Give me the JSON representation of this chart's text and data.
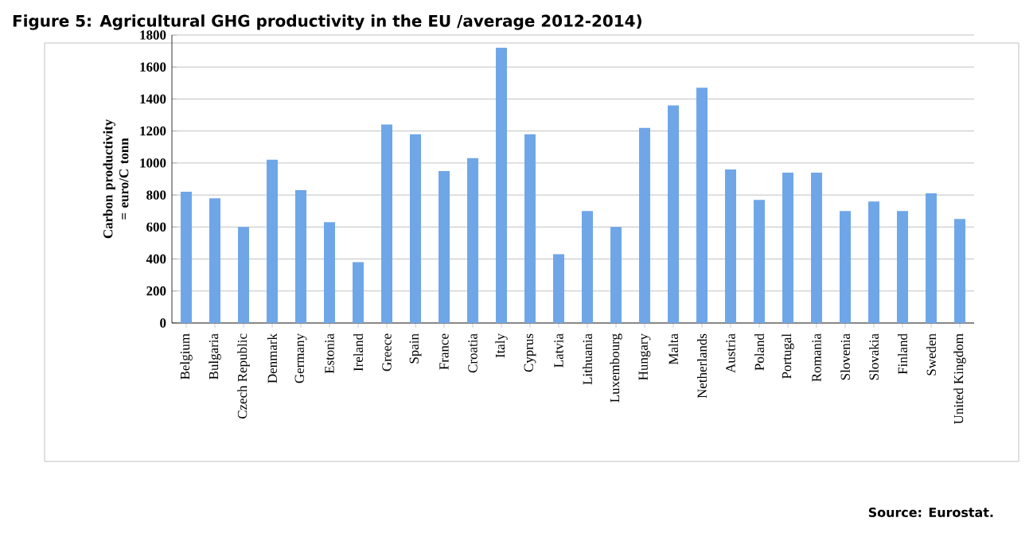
{
  "chart_data": {
    "type": "bar",
    "title": "Figure 5:  Agricultural GHG productivity in the EU /average 2012-2014)",
    "ylabel": "Carbon productivity = euro/C tonn",
    "categories": [
      "Belgium",
      "Bulgaria",
      "Czech Republic",
      "Denmark",
      "Germany",
      "Estonia",
      "Ireland",
      "Greece",
      "Spain",
      "France",
      "Croatia",
      "Italy",
      "Cyprus",
      "Latvia",
      "Lithuania",
      "Luxembourg",
      "Hungary",
      "Malta",
      "Netherlands",
      "Austria",
      "Poland",
      "Portugal",
      "Romania",
      "Slovenia",
      "Slovakia",
      "Finland",
      "Sweden",
      "United Kingdom"
    ],
    "values": [
      820,
      780,
      600,
      1020,
      830,
      630,
      380,
      1240,
      1180,
      950,
      1030,
      1720,
      1180,
      430,
      700,
      600,
      1220,
      1360,
      1470,
      960,
      770,
      940,
      940,
      700,
      760,
      700,
      810,
      650
    ],
    "color": "#6fa6e8",
    "ylim": [
      0,
      1800
    ],
    "yticks": [
      0,
      200,
      400,
      600,
      800,
      1000,
      1200,
      1400,
      1600,
      1800
    ],
    "grid": "y",
    "annotations": [
      "Source: Eurostat."
    ]
  }
}
